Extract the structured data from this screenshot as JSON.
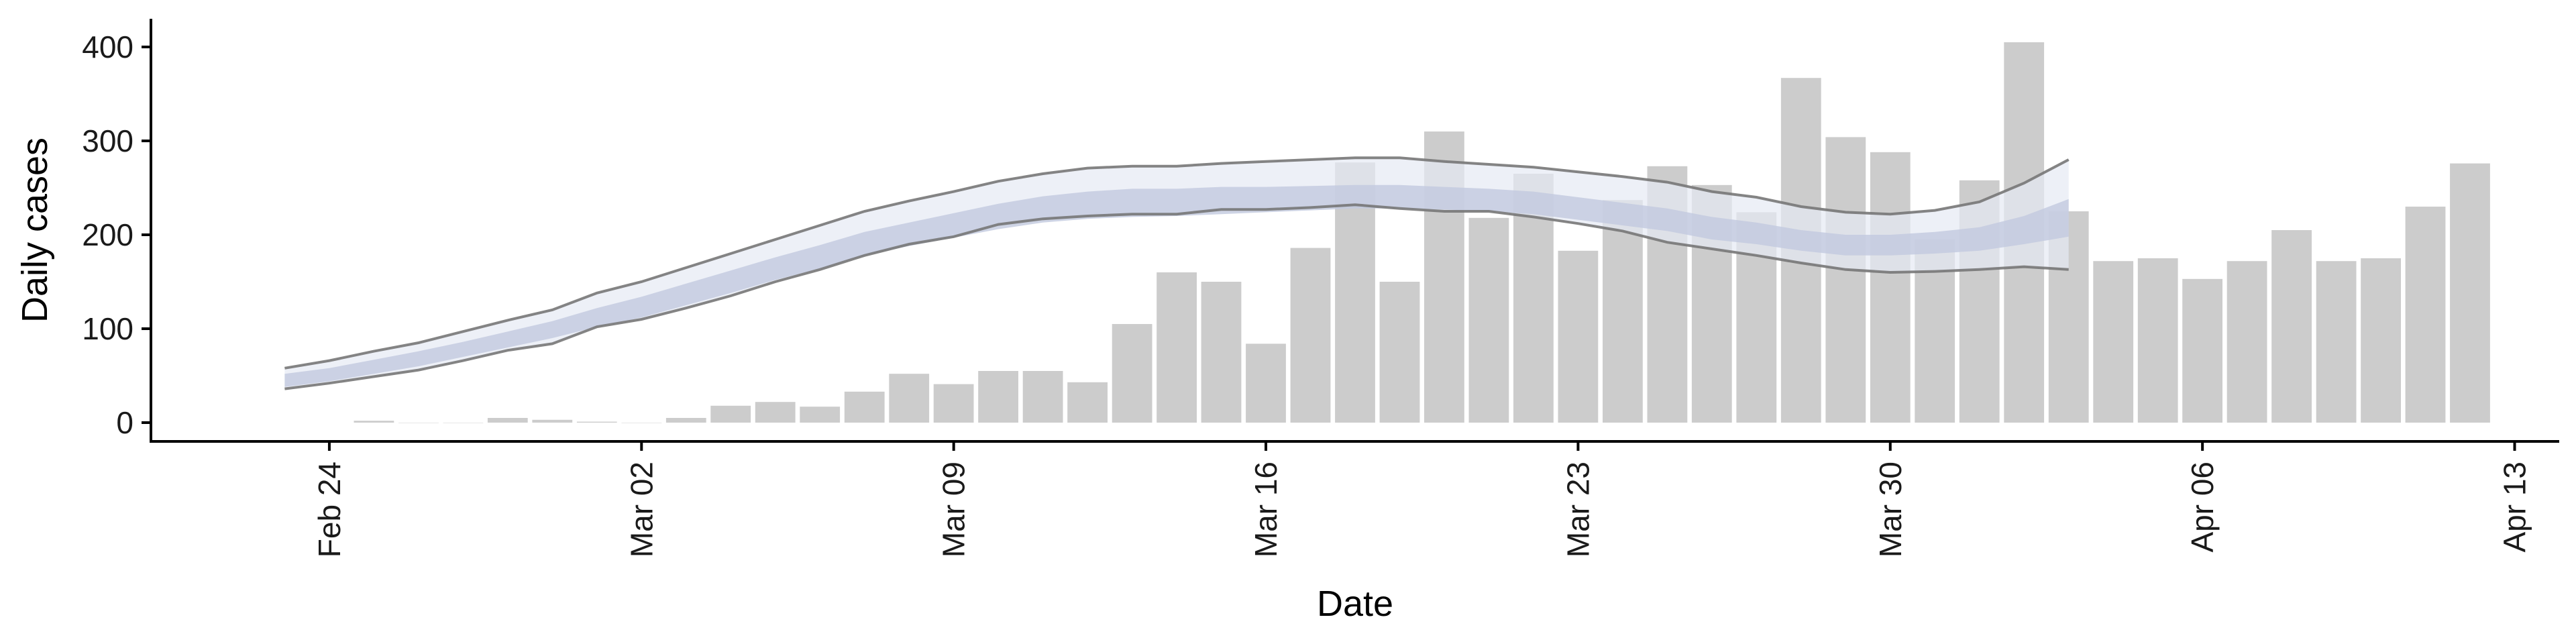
{
  "chart_data": {
    "type": "bar",
    "xlabel": "Date",
    "ylabel": "Daily cases",
    "ylim": [
      -20,
      430
    ],
    "xlim": [
      "2020-02-20",
      "2020-04-14"
    ],
    "y_ticks": [
      0,
      100,
      200,
      300,
      400
    ],
    "y_tick_labels": [
      "0",
      "100",
      "200",
      "300",
      "400"
    ],
    "x_ticks": [
      "2020-02-24",
      "2020-03-02",
      "2020-03-09",
      "2020-03-16",
      "2020-03-23",
      "2020-03-30",
      "2020-04-06",
      "2020-04-13"
    ],
    "x_tick_labels": [
      "Feb 24",
      "Mar 02",
      "Mar 09",
      "Mar 16",
      "Mar 23",
      "Mar 30",
      "Apr 06",
      "Apr 13"
    ],
    "grid": false,
    "legend": "none",
    "colors": {
      "bars": "#cccccc",
      "bounds": "#777777",
      "outer_band": "#e6e9f3",
      "inner_band": "#c2c9de"
    },
    "bars": {
      "dates": [
        "2020-02-25",
        "2020-02-26",
        "2020-02-27",
        "2020-02-28",
        "2020-02-29",
        "2020-03-01",
        "2020-03-02",
        "2020-03-03",
        "2020-03-04",
        "2020-03-05",
        "2020-03-06",
        "2020-03-07",
        "2020-03-08",
        "2020-03-09",
        "2020-03-10",
        "2020-03-11",
        "2020-03-12",
        "2020-03-13",
        "2020-03-14",
        "2020-03-15",
        "2020-03-16",
        "2020-03-17",
        "2020-03-18",
        "2020-03-19",
        "2020-03-20",
        "2020-03-21",
        "2020-03-22",
        "2020-03-23",
        "2020-03-24",
        "2020-03-25",
        "2020-03-26",
        "2020-03-27",
        "2020-03-28",
        "2020-03-29",
        "2020-03-30",
        "2020-03-31",
        "2020-04-01",
        "2020-04-02",
        "2020-04-03",
        "2020-04-04",
        "2020-04-05",
        "2020-04-06",
        "2020-04-07",
        "2020-04-08",
        "2020-04-09",
        "2020-04-10",
        "2020-04-11",
        "2020-04-12"
      ],
      "values": [
        2,
        0,
        0,
        5,
        3,
        1,
        0,
        5,
        18,
        22,
        17,
        33,
        52,
        41,
        55,
        55,
        43,
        105,
        160,
        150,
        84,
        186,
        277,
        150,
        310,
        218,
        265,
        183,
        237,
        273,
        253,
        224,
        367,
        304,
        288,
        195,
        258,
        405,
        225,
        172,
        175,
        153,
        172,
        205,
        172,
        175,
        230,
        276
      ]
    },
    "estimate": {
      "dates": [
        "2020-02-23",
        "2020-02-24",
        "2020-02-25",
        "2020-02-26",
        "2020-02-27",
        "2020-02-28",
        "2020-02-29",
        "2020-03-01",
        "2020-03-02",
        "2020-03-03",
        "2020-03-04",
        "2020-03-05",
        "2020-03-06",
        "2020-03-07",
        "2020-03-08",
        "2020-03-09",
        "2020-03-10",
        "2020-03-11",
        "2020-03-12",
        "2020-03-13",
        "2020-03-14",
        "2020-03-15",
        "2020-03-16",
        "2020-03-17",
        "2020-03-18",
        "2020-03-19",
        "2020-03-20",
        "2020-03-21",
        "2020-03-22",
        "2020-03-23",
        "2020-03-24",
        "2020-03-25",
        "2020-03-26",
        "2020-03-27",
        "2020-03-28",
        "2020-03-29",
        "2020-03-30",
        "2020-03-31",
        "2020-04-01",
        "2020-04-02",
        "2020-04-03"
      ],
      "upper": [
        58,
        66,
        76,
        85,
        97,
        109,
        120,
        138,
        150,
        165,
        180,
        195,
        210,
        225,
        236,
        246,
        257,
        265,
        271,
        273,
        273,
        276,
        278,
        280,
        282,
        282,
        278,
        275,
        272,
        267,
        262,
        256,
        246,
        240,
        230,
        224,
        222,
        226,
        235,
        255,
        280
      ],
      "inner_upper": [
        52,
        58,
        67,
        76,
        86,
        97,
        108,
        122,
        134,
        148,
        162,
        176,
        189,
        203,
        213,
        223,
        233,
        241,
        246,
        249,
        249,
        251,
        251,
        252,
        253,
        253,
        251,
        249,
        246,
        240,
        234,
        228,
        219,
        213,
        205,
        200,
        200,
        203,
        208,
        220,
        238
      ],
      "inner_lower": [
        38,
        44,
        52,
        60,
        70,
        80,
        90,
        102,
        112,
        125,
        138,
        152,
        164,
        178,
        188,
        197,
        206,
        213,
        217,
        219,
        220,
        222,
        224,
        226,
        228,
        228,
        227,
        225,
        222,
        216,
        210,
        204,
        195,
        190,
        183,
        178,
        178,
        180,
        183,
        190,
        198
      ],
      "lower": [
        36,
        42,
        49,
        56,
        66,
        77,
        84,
        102,
        110,
        122,
        135,
        150,
        163,
        178,
        190,
        198,
        211,
        217,
        220,
        222,
        222,
        227,
        227,
        229,
        232,
        228,
        225,
        225,
        219,
        212,
        204,
        192,
        185,
        178,
        170,
        163,
        160,
        161,
        163,
        166,
        163
      ]
    }
  }
}
